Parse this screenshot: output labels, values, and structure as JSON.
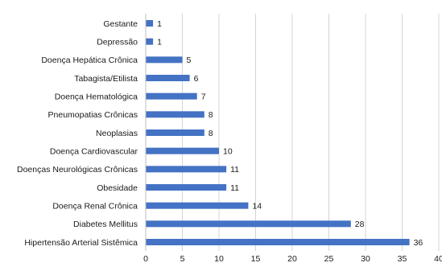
{
  "chart_data": {
    "type": "bar",
    "orientation": "horizontal",
    "categories": [
      "Gestante",
      "Depressão",
      "Doença Hepática Crônica",
      "Tabagista/Etilista",
      "Doença Hematológica",
      "Pneumopatias Crônicas",
      "Neoplasias",
      "Doença Cardiovascular",
      "Doenças Neurológicas Crônicas",
      "Obesidade",
      "Doença Renal Crônica",
      "Diabetes Mellitus",
      "Hipertensão Arterial Sistêmica"
    ],
    "values": [
      1,
      1,
      5,
      6,
      7,
      8,
      8,
      10,
      11,
      11,
      14,
      28,
      36
    ],
    "value_labels": [
      "1",
      "1",
      "5",
      "6",
      "7",
      "8",
      "8",
      "10",
      "11",
      "11",
      "14",
      "28",
      "36"
    ],
    "xticks": [
      "0",
      "5",
      "10",
      "15",
      "20",
      "25",
      "30",
      "35",
      "40"
    ],
    "xlim": [
      0,
      40
    ],
    "grid": true,
    "bar_color": "#4472c4",
    "title": "",
    "xlabel": "",
    "ylabel": ""
  }
}
